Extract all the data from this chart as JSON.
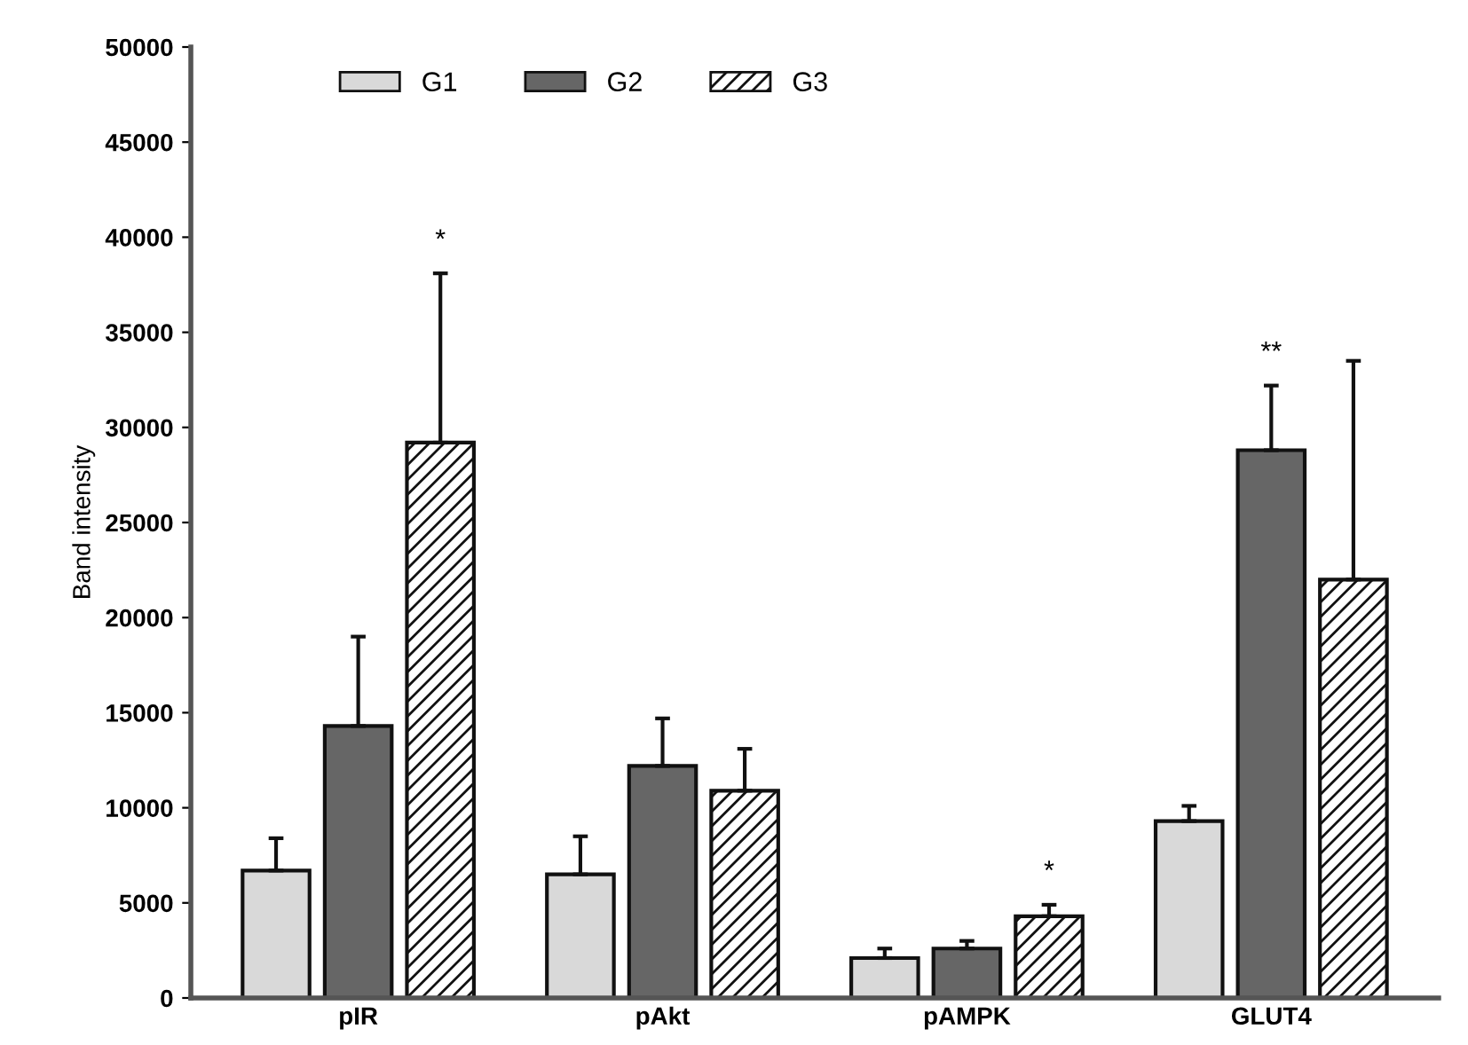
{
  "chart_data": {
    "type": "bar",
    "ylabel": "Band intensity",
    "categories": [
      "pIR",
      "pAkt",
      "pAMPK",
      "GLUT4"
    ],
    "series": [
      {
        "name": "G1",
        "color": "#d9d9d9",
        "values": [
          6700,
          6500,
          2100,
          9300
        ],
        "errors": [
          [
            6700,
            8400
          ],
          [
            6500,
            8500
          ],
          [
            2100,
            2600
          ],
          [
            9300,
            10100
          ]
        ]
      },
      {
        "name": "G2",
        "color": "#666666",
        "values": [
          14300,
          12200,
          2600,
          28800
        ],
        "errors": [
          [
            14300,
            19000
          ],
          [
            12200,
            14700
          ],
          [
            2600,
            3000
          ],
          [
            28800,
            32200
          ]
        ]
      },
      {
        "name": "G3",
        "color": "#111111",
        "values": [
          29200,
          10900,
          4300,
          22000
        ],
        "errors": [
          [
            29200,
            38100
          ],
          [
            10900,
            13100
          ],
          [
            4300,
            4900
          ],
          [
            22000,
            33500
          ]
        ]
      }
    ],
    "ylim": [
      0,
      50000
    ],
    "yticks": [
      0,
      5000,
      10000,
      15000,
      20000,
      25000,
      30000,
      35000,
      40000,
      45000,
      50000
    ],
    "annotations": [
      "*",
      "*",
      "**"
    ],
    "grid": false,
    "legend": "top"
  }
}
